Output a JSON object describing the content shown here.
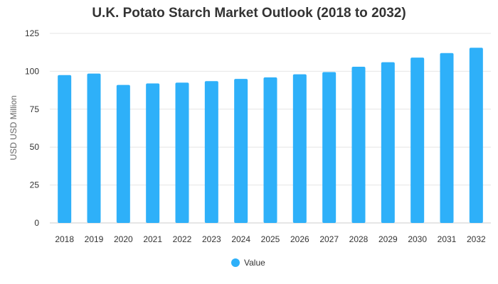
{
  "chart_data": {
    "type": "bar",
    "title": "U.K. Potato Starch Market Outlook (2018 to 2032)",
    "xlabel": "",
    "ylabel": "USD USD Million",
    "categories": [
      "2018",
      "2019",
      "2020",
      "2021",
      "2022",
      "2023",
      "2024",
      "2025",
      "2026",
      "2027",
      "2028",
      "2029",
      "2030",
      "2031",
      "2032"
    ],
    "series": [
      {
        "name": "Value",
        "color": "#2EB0F9",
        "values": [
          97.5,
          98.5,
          91,
          92,
          92.5,
          93.5,
          95,
          96,
          98,
          99.5,
          103,
          106,
          109,
          112,
          115.5
        ]
      }
    ],
    "ylim": [
      0,
      125
    ],
    "yticks": [
      0,
      25,
      50,
      75,
      100,
      125
    ],
    "grid": true,
    "legend": "bottom-center"
  }
}
